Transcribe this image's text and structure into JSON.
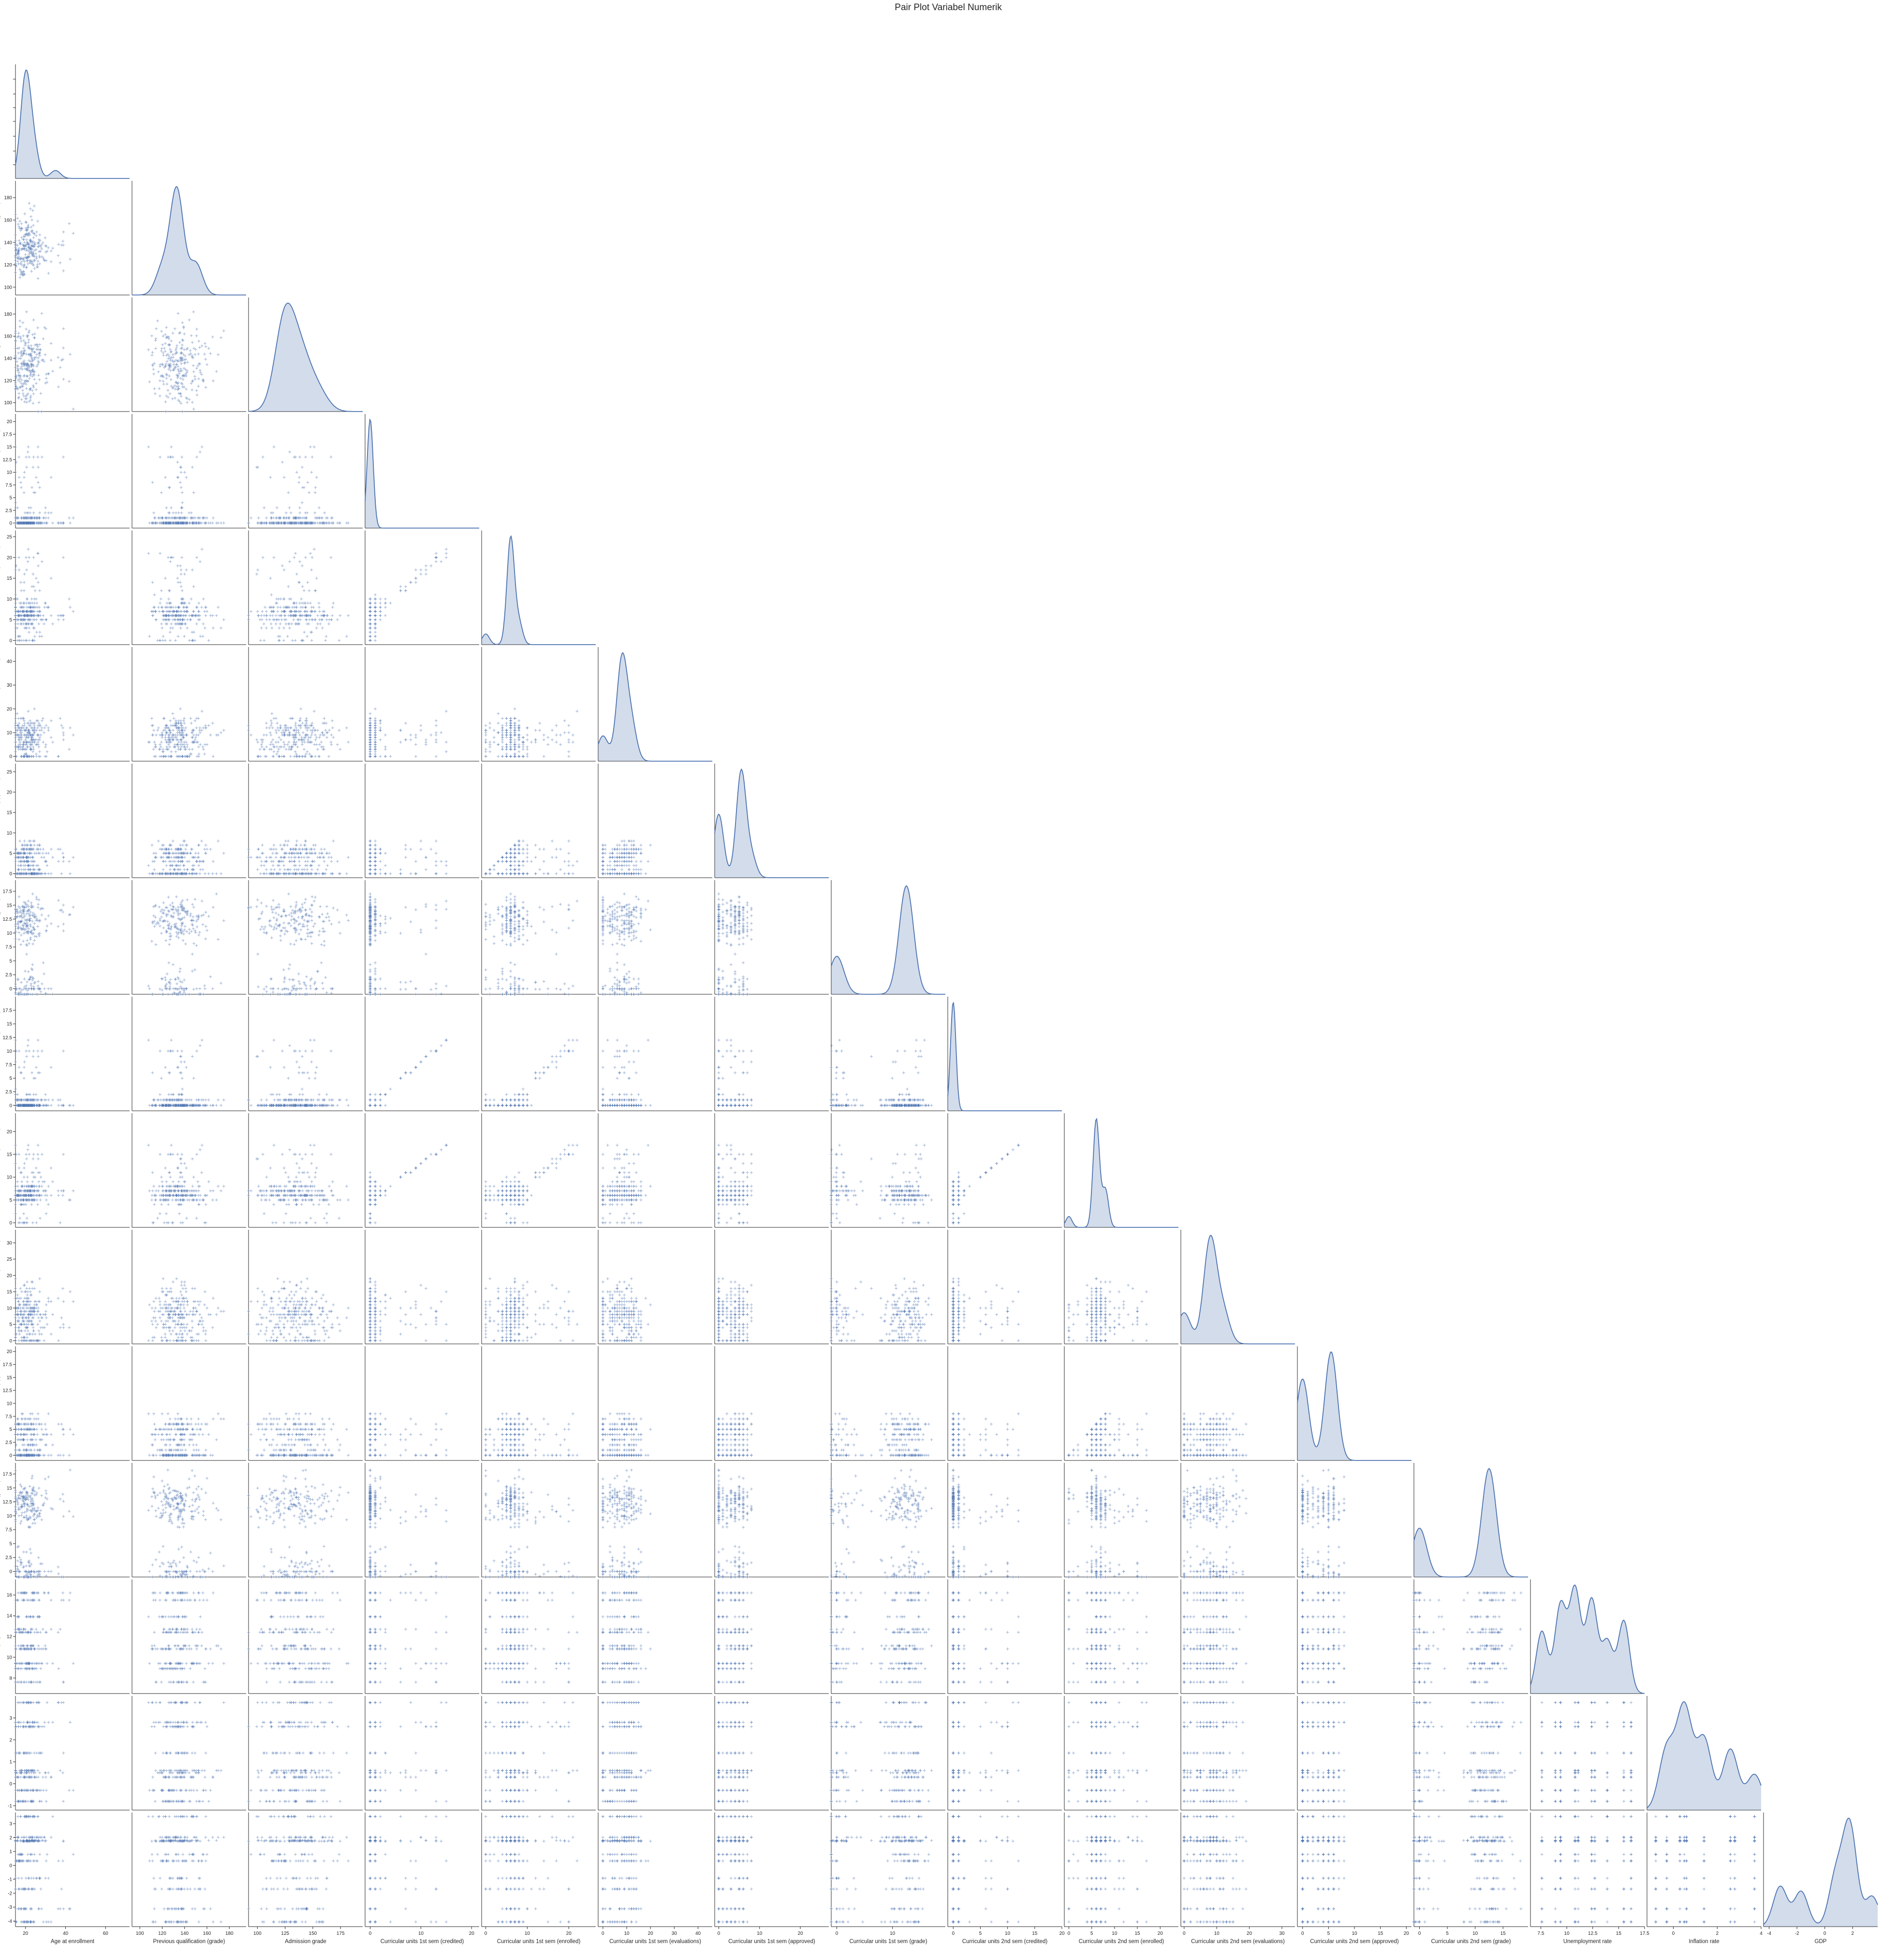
{
  "figure": {
    "title": "Pair Plot Variabel Numerik"
  },
  "chart_data": {
    "type": "scatter",
    "kind": "pairplot-lower-corner",
    "marker": "+",
    "color": "#4c72b0",
    "diagonal": "kde",
    "title": "Pair Plot Variabel Numerik",
    "variables": [
      {
        "name": "Age at enrollment",
        "range": [
          15,
          72
        ],
        "ticks": [
          20,
          40,
          60
        ],
        "kde": {
          "peaks": [
            [
              20,
              1.0
            ],
            [
              24,
              0.3
            ],
            [
              35,
              0.08
            ]
          ],
          "sd": 2.5
        }
      },
      {
        "name": "Previous qualification (grade)",
        "range": [
          93,
          195
        ],
        "ticks": [
          100,
          120,
          140,
          160,
          180
        ],
        "kde": {
          "peaks": [
            [
              133,
              1.0
            ],
            [
              150,
              0.3
            ],
            [
              120,
              0.25
            ]
          ],
          "sd": 6
        }
      },
      {
        "name": "Admission grade",
        "range": [
          92,
          195
        ],
        "ticks": [
          100,
          120,
          140,
          160,
          180
        ],
        "ticks_x": [
          100,
          125,
          150,
          175,
          200
        ],
        "kde": {
          "peaks": [
            [
              125,
              1.0
            ],
            [
              140,
              0.5
            ],
            [
              155,
              0.2
            ]
          ],
          "sd": 9
        }
      },
      {
        "name": "Curricular units 1st sem (credited)",
        "range": [
          -1,
          21.5
        ],
        "ticks": [
          0,
          2.5,
          5,
          7.5,
          10,
          12.5,
          15,
          17.5,
          20
        ],
        "ticks_x": [
          0,
          10,
          20
        ],
        "kde": {
          "peaks": [
            [
              0,
              1.0
            ]
          ],
          "sd": 0.6
        }
      },
      {
        "name": "Curricular units 1st sem (enrolled)",
        "range": [
          -1,
          26.5
        ],
        "ticks": [
          0,
          5,
          10,
          15,
          20,
          25
        ],
        "ticks_x": [
          0,
          10,
          20
        ],
        "kde": {
          "peaks": [
            [
              6,
              1.0
            ],
            [
              0,
              0.1
            ],
            [
              8,
              0.2
            ]
          ],
          "sd": 0.9
        }
      },
      {
        "name": "Curricular units 1st sem (evaluations)",
        "range": [
          -2,
          46
        ],
        "ticks": [
          0,
          10,
          20,
          30,
          40
        ],
        "kde": {
          "peaks": [
            [
              8,
              1.0
            ],
            [
              0,
              0.25
            ],
            [
              12,
              0.35
            ]
          ],
          "sd": 2.2
        }
      },
      {
        "name": "Curricular units 1st sem (approved)",
        "range": [
          -1,
          27
        ],
        "ticks": [
          0,
          5,
          10,
          15,
          20,
          25
        ],
        "ticks_x": [
          0,
          10,
          20
        ],
        "kde": {
          "peaks": [
            [
              5.5,
              1.0
            ],
            [
              0,
              0.6
            ],
            [
              8,
              0.2
            ]
          ],
          "sd": 1.2
        }
      },
      {
        "name": "Curricular units 1st sem (grade)",
        "range": [
          -1,
          19.5
        ],
        "ticks": [
          0,
          2.5,
          5,
          7.5,
          10,
          12.5,
          15,
          17.5
        ],
        "ticks_x": [
          0,
          10
        ],
        "kde": {
          "peaks": [
            [
              12.5,
              1.0
            ],
            [
              0,
              0.35
            ]
          ],
          "sd": 1.3
        }
      },
      {
        "name": "Curricular units 2nd sem (credited)",
        "range": [
          -1,
          20
        ],
        "ticks": [
          0,
          2.5,
          5,
          7.5,
          10,
          12.5,
          15,
          17.5
        ],
        "ticks_x": [
          0,
          5,
          10,
          15,
          20
        ],
        "kde": {
          "peaks": [
            [
              0,
              1.0
            ]
          ],
          "sd": 0.5
        }
      },
      {
        "name": "Curricular units 2nd sem (enrolled)",
        "range": [
          -1,
          24
        ],
        "ticks": [
          0,
          5,
          10,
          15,
          20
        ],
        "kde": {
          "peaks": [
            [
              6,
              1.0
            ],
            [
              8,
              0.35
            ],
            [
              0,
              0.1
            ]
          ],
          "sd": 0.7
        }
      },
      {
        "name": "Curricular units 2nd sem (evaluations)",
        "range": [
          -1,
          34
        ],
        "ticks": [
          0,
          5,
          10,
          15,
          20,
          25,
          30
        ],
        "ticks_x": [
          0,
          10,
          20,
          30
        ],
        "kde": {
          "peaks": [
            [
              8,
              1.0
            ],
            [
              0,
              0.3
            ],
            [
              12,
              0.3
            ]
          ],
          "sd": 2.0
        }
      },
      {
        "name": "Curricular units 2nd sem (approved)",
        "range": [
          -1,
          21
        ],
        "ticks": [
          0,
          2.5,
          5,
          7.5,
          10,
          12.5,
          15,
          17.5,
          20
        ],
        "ticks_x": [
          0,
          5,
          10,
          15,
          20
        ],
        "kde": {
          "peaks": [
            [
              5.5,
              1.0
            ],
            [
              0,
              0.75
            ]
          ],
          "sd": 1.2
        }
      },
      {
        "name": "Curricular units 2nd sem (grade)",
        "range": [
          -1,
          19.5
        ],
        "ticks": [
          0,
          2.5,
          5,
          7.5,
          10,
          12.5,
          15,
          17.5
        ],
        "ticks_x": [
          0,
          5,
          10,
          15
        ],
        "kde": {
          "peaks": [
            [
              12.5,
              1.0
            ],
            [
              0,
              0.45
            ]
          ],
          "sd": 1.3
        }
      },
      {
        "name": "Unemployment rate",
        "range": [
          6.5,
          17.5
        ],
        "ticks": [
          8,
          10,
          12,
          14,
          16
        ],
        "ticks_x": [
          7.5,
          10,
          12.5,
          15,
          17.5
        ],
        "kde": {
          "peaks": [
            [
              7.6,
              0.6
            ],
            [
              9.4,
              0.85
            ],
            [
              10.8,
              1.0
            ],
            [
              12.4,
              0.9
            ],
            [
              13.9,
              0.5
            ],
            [
              15.5,
              0.7
            ]
          ],
          "sd": 0.55
        }
      },
      {
        "name": "Inflation rate",
        "range": [
          -1.2,
          4
        ],
        "ticks": [
          -1,
          0,
          1,
          2,
          3
        ],
        "ticks_x": [
          0,
          2,
          4
        ],
        "kde": {
          "peaks": [
            [
              -0.3,
              0.6
            ],
            [
              0.5,
              1.0
            ],
            [
              1.4,
              0.7
            ],
            [
              2.6,
              0.6
            ],
            [
              3.7,
              0.35
            ]
          ],
          "sd": 0.35
        }
      },
      {
        "name": "GDP",
        "range": [
          -4.4,
          3.8
        ],
        "ticks": [
          -4,
          -3,
          -2,
          -1,
          0,
          1,
          2,
          3
        ],
        "ticks_x": [
          -4,
          -2,
          0,
          2,
          4
        ],
        "kde": {
          "peaks": [
            [
              -3.2,
              0.4
            ],
            [
              -1.7,
              0.35
            ],
            [
              0.8,
              0.5
            ],
            [
              1.8,
              1.0
            ],
            [
              3.4,
              0.3
            ]
          ],
          "sd": 0.5
        }
      }
    ],
    "discrete_levels": {
      "Unemployment rate": [
        7.6,
        8.9,
        9.4,
        10.8,
        11.1,
        12.4,
        12.7,
        13.9,
        15.5,
        16.2
      ],
      "Inflation rate": [
        -0.8,
        -0.3,
        0.3,
        0.5,
        0.6,
        1.4,
        2.6,
        2.8,
        3.7
      ],
      "GDP": [
        -4.06,
        -3.12,
        -1.7,
        -0.92,
        0.32,
        0.79,
        1.74,
        1.79,
        2.02,
        3.51
      ]
    }
  }
}
